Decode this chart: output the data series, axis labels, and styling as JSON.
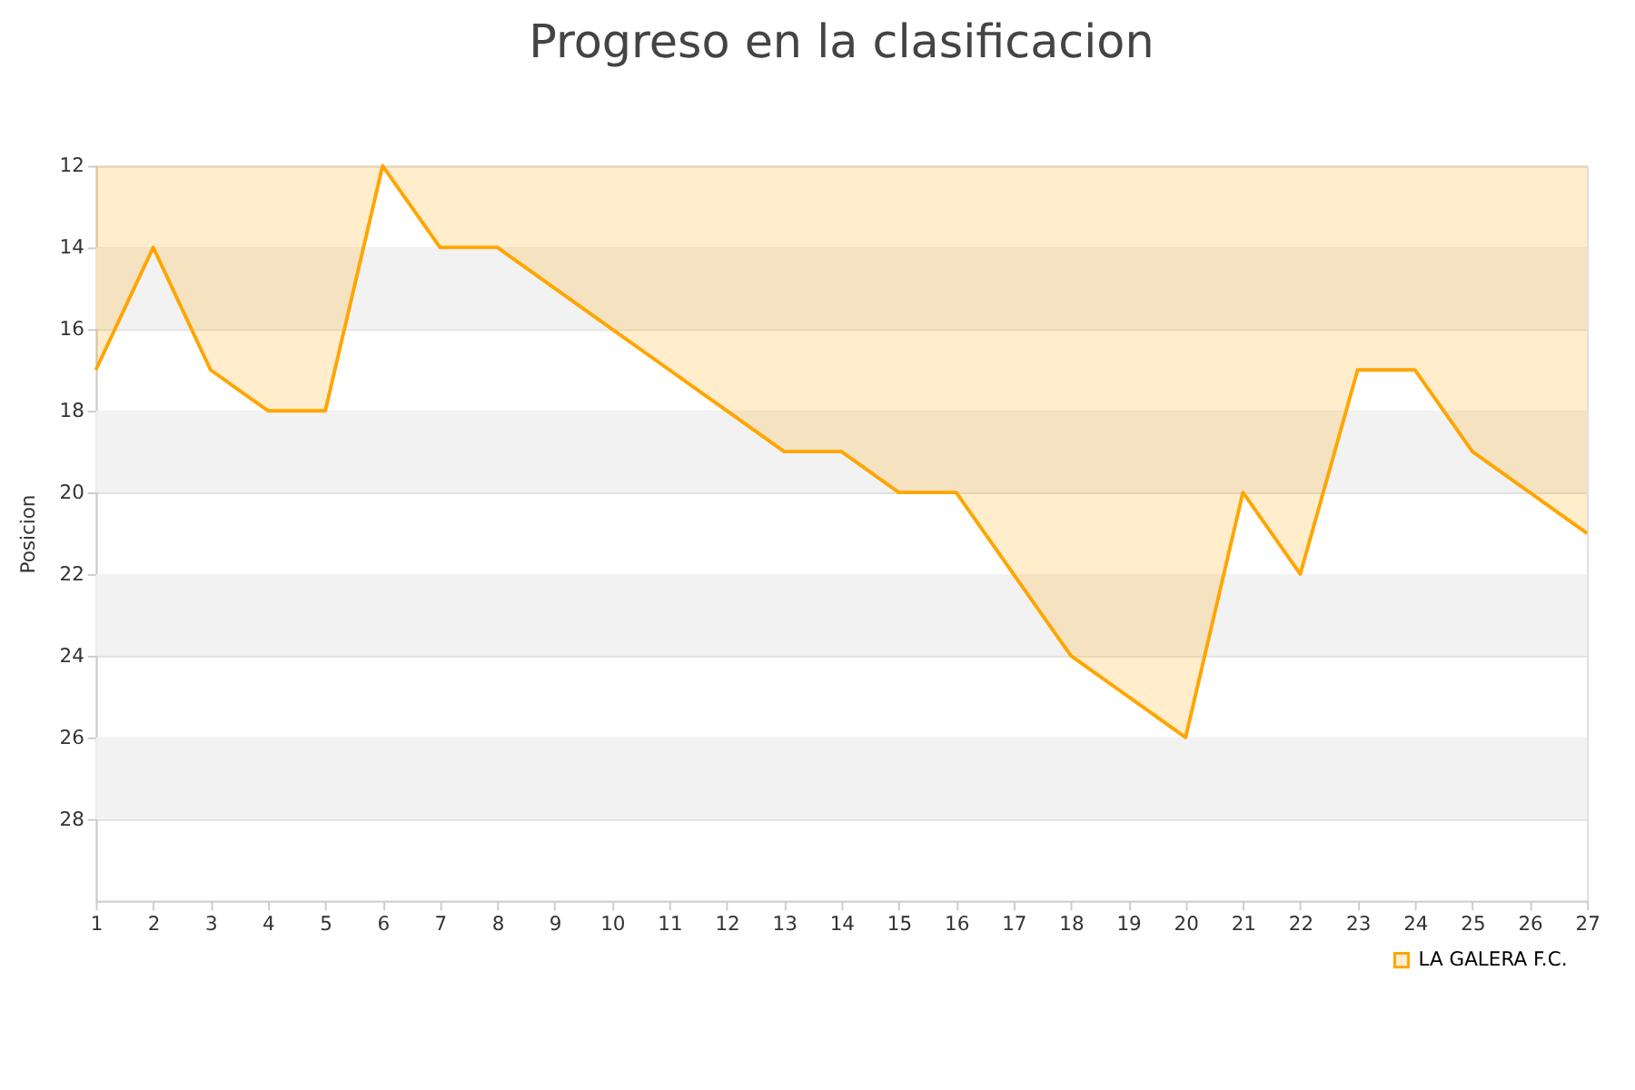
{
  "chart_data": {
    "type": "area",
    "title": "Progreso en la clasificacion",
    "ylabel": "Posicion",
    "x": [
      1,
      2,
      3,
      4,
      5,
      6,
      7,
      8,
      9,
      10,
      11,
      12,
      13,
      14,
      15,
      16,
      17,
      18,
      19,
      20,
      21,
      22,
      23,
      24,
      25,
      26,
      27
    ],
    "series": [
      {
        "name": "LA GALERA F.C.",
        "color": "#ffa500",
        "values": [
          17,
          14,
          17,
          18,
          18,
          12,
          14,
          14,
          15,
          16,
          17,
          18,
          19,
          19,
          20,
          20,
          22,
          24,
          25,
          26,
          20,
          22,
          17,
          17,
          19,
          20,
          21
        ]
      }
    ],
    "xlim": [
      1,
      27
    ],
    "xticks": [
      1,
      2,
      3,
      4,
      5,
      6,
      7,
      8,
      9,
      10,
      11,
      12,
      13,
      14,
      15,
      16,
      17,
      18,
      19,
      20,
      21,
      22,
      23,
      24,
      25,
      26,
      27
    ],
    "ylim": [
      30,
      12
    ],
    "yticks": [
      12,
      14,
      16,
      18,
      20,
      22,
      24,
      26,
      28
    ],
    "bands": [
      {
        "axis": "y",
        "from": 14,
        "to": 16,
        "color": "#f2f2f2"
      },
      {
        "axis": "y",
        "from": 18,
        "to": 20,
        "color": "#f2f2f2"
      },
      {
        "axis": "y",
        "from": 22,
        "to": 24,
        "color": "#f2f2f2"
      },
      {
        "axis": "y",
        "from": 26,
        "to": 28,
        "color": "#f2f2f2"
      }
    ],
    "grid": "y",
    "legend": "bottom right",
    "marker": "none",
    "line_style": "solid"
  }
}
